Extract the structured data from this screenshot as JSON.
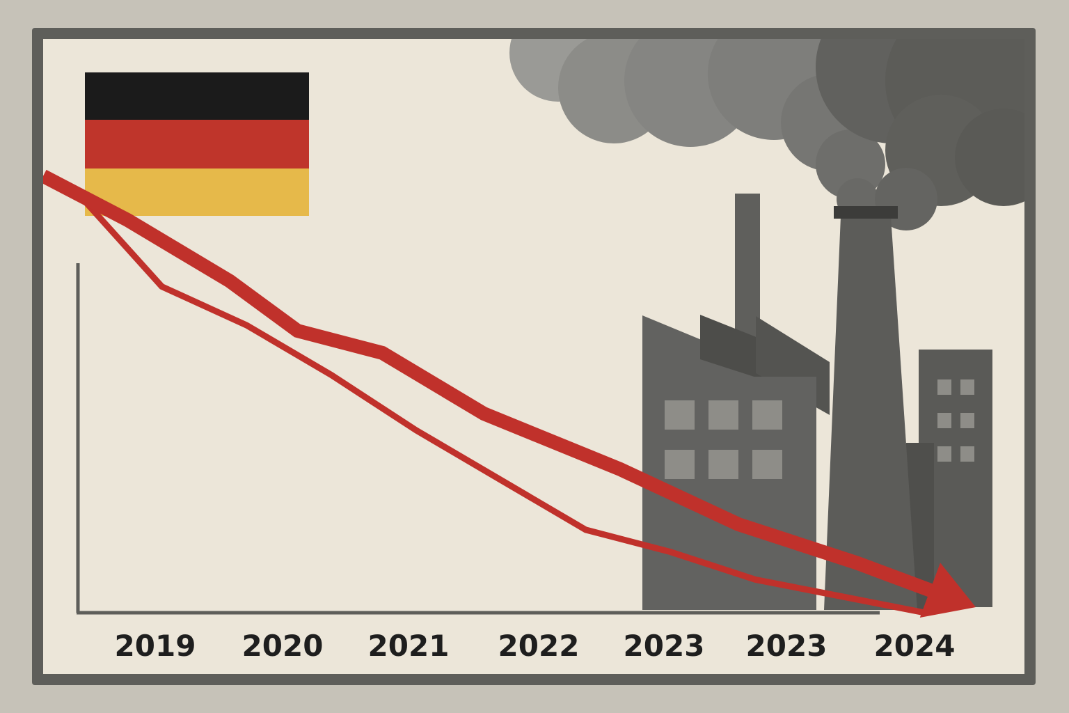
{
  "chart_data": {
    "type": "line",
    "title": "",
    "xlabel": "",
    "ylabel": "",
    "categories": [
      "2019",
      "2020",
      "2021",
      "2022",
      "2023",
      "2023",
      "2024"
    ],
    "ylim": [
      0,
      100
    ],
    "series": [
      {
        "style": "thick-arrow",
        "x": [
          2018.8,
          2019.3,
          2019.9,
          2020.3,
          2020.8,
          2021.4,
          2022.2,
          2022.9,
          2023.6,
          2024.3
        ],
        "y": [
          79,
          71,
          60,
          51,
          47,
          36,
          26,
          16,
          9,
          1
        ]
      },
      {
        "style": "thin",
        "x": [
          2019.0,
          2019.5,
          2020.0,
          2020.5,
          2021.0,
          2021.5,
          2022.0,
          2022.5,
          2023.0,
          2023.5,
          2024.0
        ],
        "y": [
          76,
          59,
          52,
          43,
          33,
          24,
          15,
          11,
          6,
          3,
          0
        ]
      }
    ],
    "colors": {
      "line": "#c0312b",
      "axis": "#5e5e5a",
      "flag_black": "#1b1b1b",
      "flag_red": "#bf352b",
      "flag_gold": "#e6b94a",
      "factory_dark": "#555552",
      "factory_mid": "#6a6a66",
      "window": "#8e8d88",
      "smoke_dark": "#5c5c58",
      "smoke_mid": "#838380"
    }
  },
  "decorations": {
    "flag": "germany-flag-icon",
    "factory": "factory-icon",
    "smoke": "smoke-cloud-icon"
  }
}
